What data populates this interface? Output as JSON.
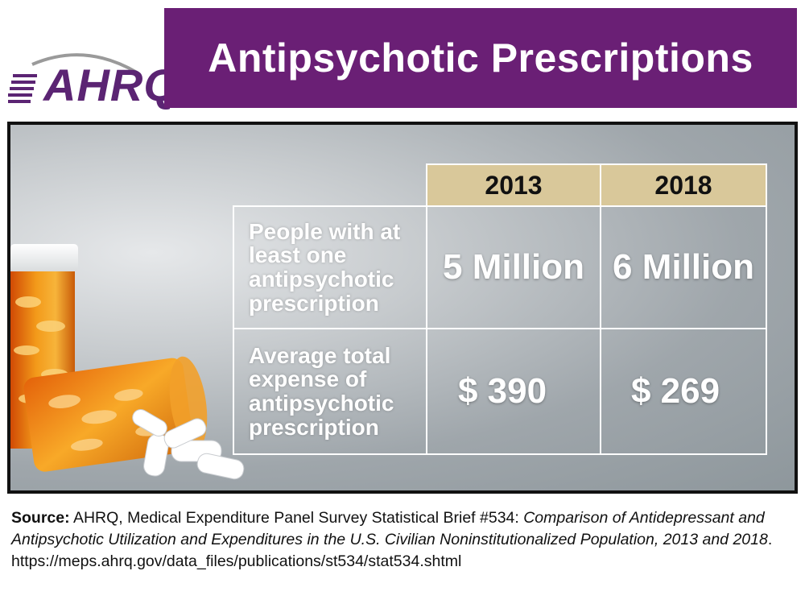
{
  "logo": {
    "text": "AHRQ"
  },
  "title": "Antipsychotic Prescriptions",
  "table": {
    "years": [
      "2013",
      "2018"
    ],
    "rows": [
      {
        "label": "People with at least one antipsychotic prescription",
        "values": [
          "5 Million",
          "6 Million"
        ]
      },
      {
        "label": "Average total expense of antipsychotic prescription",
        "values": [
          "$ 390",
          "$ 269"
        ]
      }
    ]
  },
  "source": {
    "prefix": "Source:",
    "text1": " AHRQ, Medical Expenditure Panel Survey Statistical Brief #534: ",
    "title_italic": "Comparison of Antidepressant and Antipsychotic Utilization and Expenditures in the U.S. Civilian Noninstitutionalized Population, 2013 and 2018",
    "text2": ". https://meps.ahrq.gov/data_files/publications/st534/stat534.shtml"
  },
  "colors": {
    "banner": "#6a1f75",
    "year_header": "#d9c89a",
    "logo": "#5b2473"
  }
}
